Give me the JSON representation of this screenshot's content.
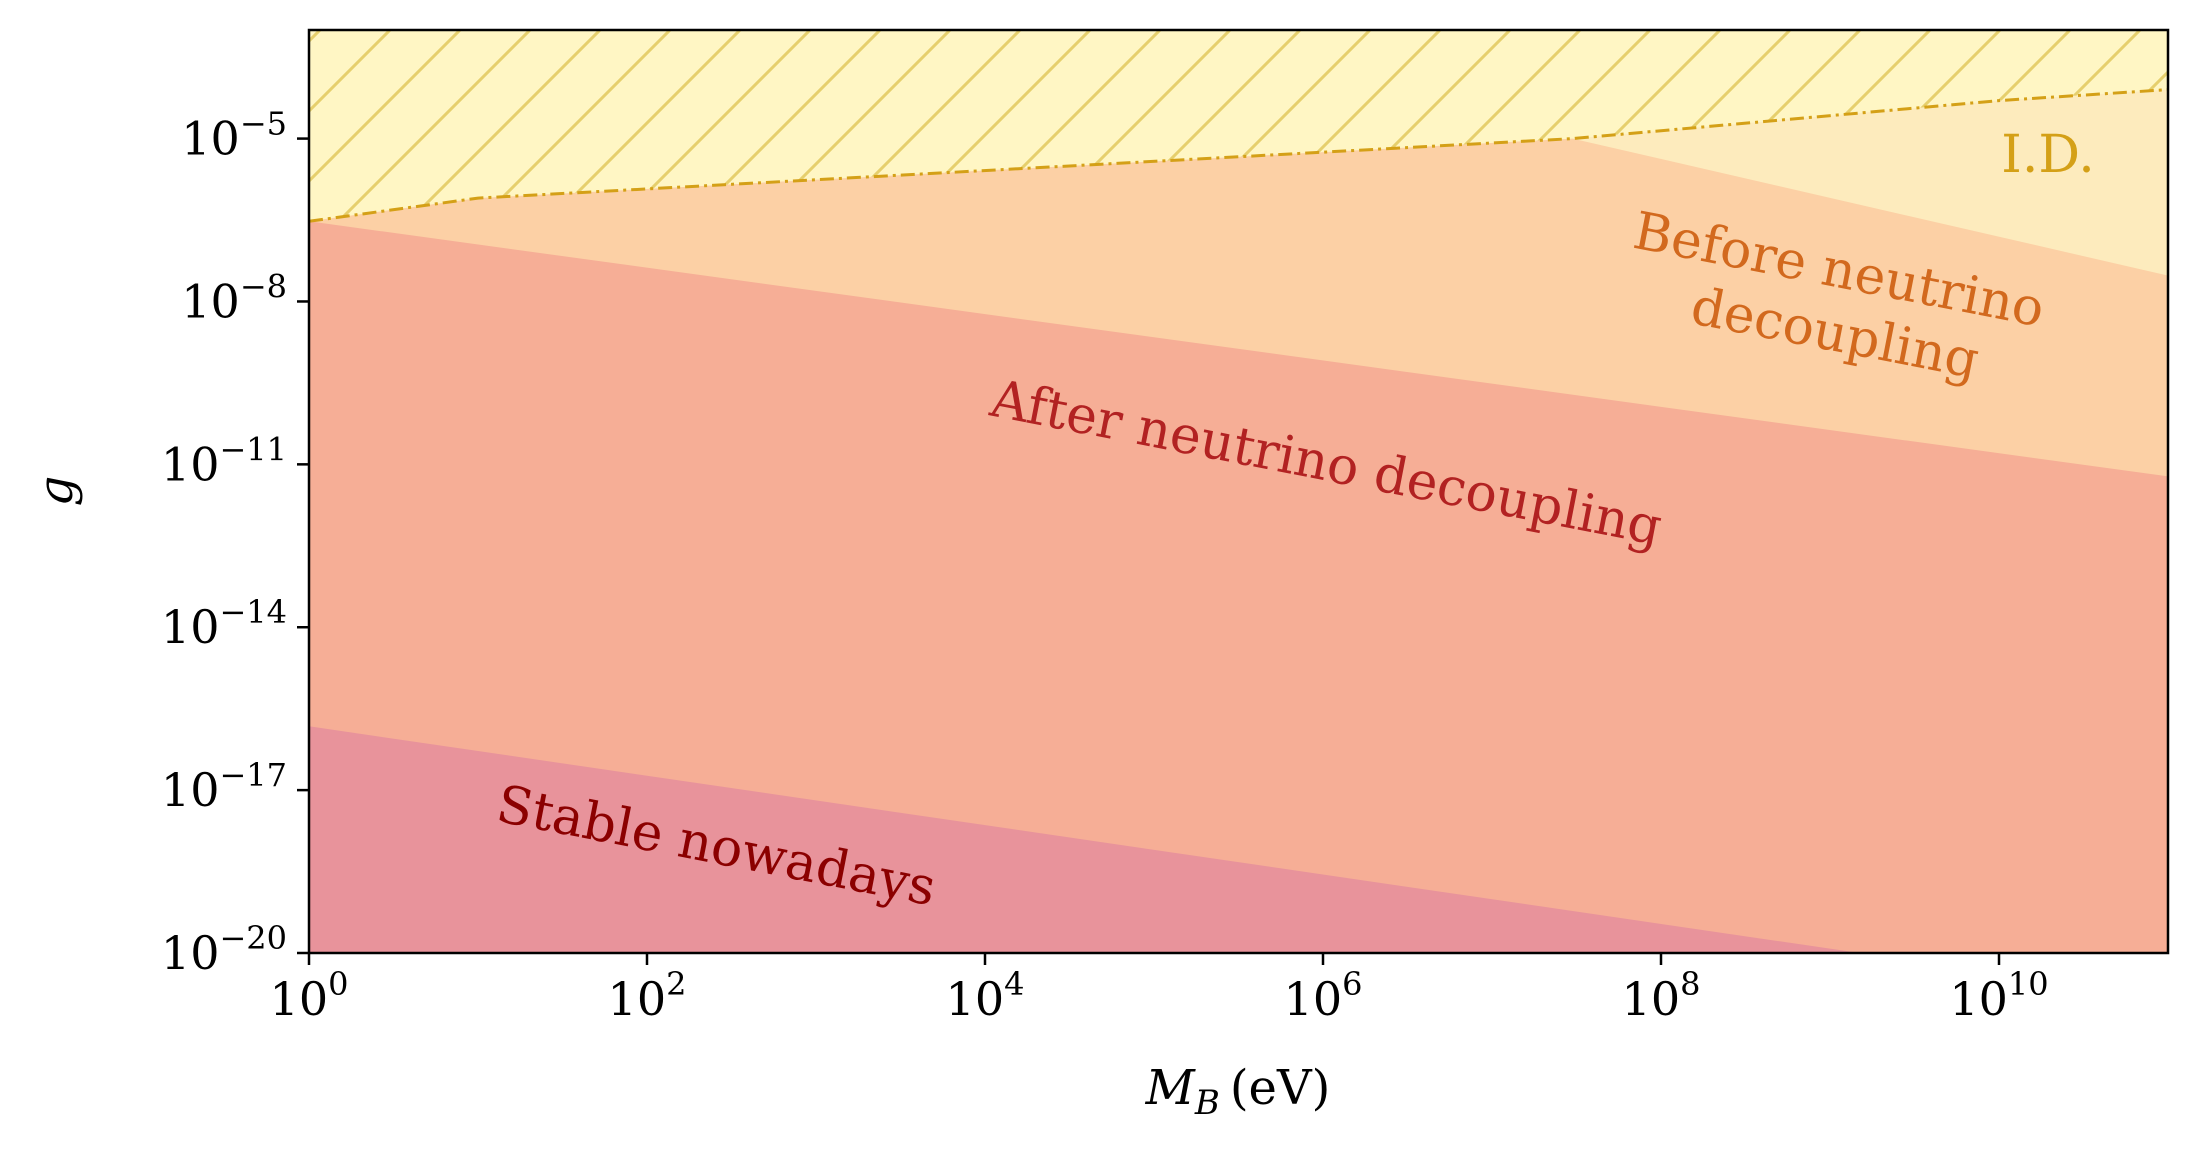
{
  "chart_data": {
    "type": "area",
    "xscale": "log",
    "yscale": "log",
    "xlim": [
      1,
      100000000000.0
    ],
    "ylim": [
      1e-20,
      0.001
    ],
    "xlabel": {
      "main": "M",
      "subscript": "B",
      "unit": "(eV)"
    },
    "ylabel": "g",
    "x_ticks": [
      {
        "base": "10",
        "exp": "0"
      },
      {
        "base": "10",
        "exp": "2"
      },
      {
        "base": "10",
        "exp": "4"
      },
      {
        "base": "10",
        "exp": "6"
      },
      {
        "base": "10",
        "exp": "8"
      },
      {
        "base": "10",
        "exp": "10"
      }
    ],
    "x_tick_values": [
      1,
      100.0,
      10000.0,
      1000000.0,
      100000000.0,
      10000000000.0
    ],
    "y_ticks": [
      {
        "base": "10",
        "exp": "−5"
      },
      {
        "base": "10",
        "exp": "−8"
      },
      {
        "base": "10",
        "exp": "−11"
      },
      {
        "base": "10",
        "exp": "−14"
      },
      {
        "base": "10",
        "exp": "−17"
      },
      {
        "base": "10",
        "exp": "−20"
      }
    ],
    "y_tick_values": [
      1e-05,
      1e-08,
      1e-11,
      1e-14,
      1e-17,
      1e-20
    ],
    "series": [
      {
        "name": "I.D.",
        "color": "#d4a017",
        "fill": "#fff6c4",
        "hatch": true,
        "boundary": {
          "x": [
            1,
            10,
            30000000.0,
            10000000000.0,
            100000000000.0
          ],
          "y": [
            3e-07,
            8e-07,
            1e-05,
            5e-05,
            8e-05
          ]
        }
      },
      {
        "name": "Before neutrino decoupling",
        "color": "#d2691e",
        "fill": "#fcd0a5",
        "lower_boundary": {
          "x": [
            1,
            100000000000.0
          ],
          "y": [
            3e-07,
            6e-12
          ]
        }
      },
      {
        "name": "After neutrino decoupling",
        "color": "#b22222",
        "fill": "#f6ae96",
        "lower_boundary": {
          "x": [
            1,
            1500000000.0
          ],
          "y": [
            1.5e-16,
            1e-20
          ]
        }
      },
      {
        "name": "Stable nowadays",
        "color": "#8b0000",
        "fill": "#e8939b"
      }
    ],
    "id_band_fill": "#fdebbd",
    "grid": false,
    "legend": "none"
  }
}
